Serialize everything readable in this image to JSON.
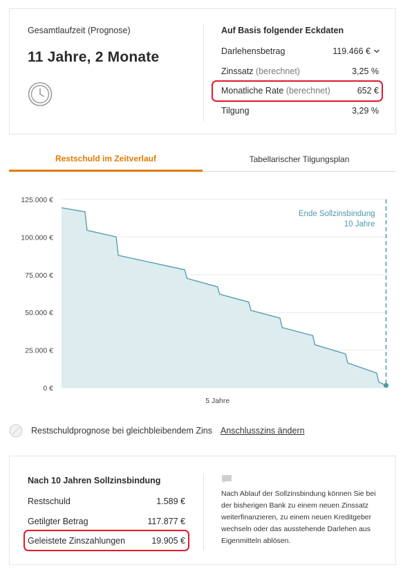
{
  "summary": {
    "duration_label": "Gesamtlaufzeit (Prognose)",
    "duration_value": "11 Jahre, 2 Monate",
    "clock_icon": "clock-icon"
  },
  "eckdaten": {
    "heading": "Auf Basis folgender Eckdaten",
    "rows": [
      {
        "label": "Darlehensbetrag",
        "suffix": "",
        "value": "119.466 €"
      },
      {
        "label": "Zinssatz",
        "suffix": "(berechnet)",
        "value": "3,25 %"
      },
      {
        "label": "Monatliche Rate",
        "suffix": "(berechnet)",
        "value": "652 €"
      },
      {
        "label": "Tilgung",
        "suffix": "",
        "value": "3,29 %"
      }
    ]
  },
  "tabs": [
    {
      "label": "Restschuld im Zeitverlauf",
      "active": true
    },
    {
      "label": "Tabellarischer Tilgungsplan",
      "active": false
    }
  ],
  "chart_data": {
    "type": "area",
    "title": "",
    "xlabel": "",
    "ylabel": "",
    "x_tick_labels": [
      "5 Jahre"
    ],
    "y_tick_labels": [
      "125.000 €",
      "100.000 €",
      "75.000 €",
      "50.000 €",
      "25.000 €",
      "0 €"
    ],
    "ylim": [
      0,
      125000
    ],
    "xlim_years": [
      0,
      10.5
    ],
    "grid": "horizontal",
    "fill_color": "#dcecef",
    "line_color": "#4d9aa8",
    "annotation": {
      "line1": "Ende Sollzinsbindung",
      "line2": "10 Jahre",
      "x_years": 10.4
    },
    "series": [
      {
        "points": [
          [
            0,
            119466
          ],
          [
            0.75,
            116800
          ],
          [
            0.82,
            104500
          ],
          [
            1.75,
            100200
          ],
          [
            1.82,
            87900
          ],
          [
            3.95,
            78300
          ],
          [
            4.02,
            72600
          ],
          [
            5.0,
            67000
          ],
          [
            5.07,
            62100
          ],
          [
            6.0,
            56900
          ],
          [
            6.07,
            51400
          ],
          [
            7.0,
            46300
          ],
          [
            7.07,
            40000
          ],
          [
            8.05,
            34700
          ],
          [
            8.12,
            28600
          ],
          [
            9.1,
            22500
          ],
          [
            9.17,
            16500
          ],
          [
            10.1,
            9800
          ],
          [
            10.17,
            3700
          ],
          [
            10.4,
            1589
          ]
        ]
      }
    ]
  },
  "toggle": {
    "label": "Restschuldprognose bei gleichbleibendem Zins",
    "link": "Anschlusszins ändern"
  },
  "result": {
    "heading": "Nach 10 Jahren Sollzinsbindung",
    "rows": [
      {
        "label": "Restschuld",
        "value": "1.589 €"
      },
      {
        "label": "Getilgter Betrag",
        "value": "117.877 €"
      },
      {
        "label": "Geleistete Zinszahlungen",
        "value": "19.905 €"
      }
    ],
    "note": "Nach Ablauf der Sollzinsbindung können Sie bei der bisherigen Bank zu einem neuen Zinssatz weiterfinanzieren, zu einem neuen Kreditgeber wechseln oder das ausstehende Darlehen aus Eigenmitteln ablösen."
  },
  "colors": {
    "accent": "#e07b00",
    "highlight": "#e0192a",
    "chart_line": "#4d9aa8",
    "chart_fill": "#dcecef"
  }
}
